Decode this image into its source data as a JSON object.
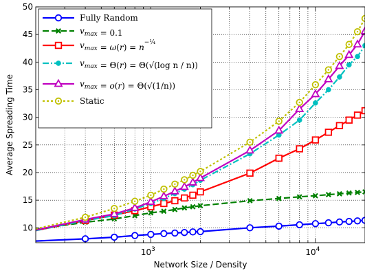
{
  "chart_data": {
    "type": "line",
    "title": "",
    "xlabel": "Network Size / Density",
    "ylabel": "Average Spreading Time",
    "x_scale": "log",
    "xlim": [
      200,
      20000
    ],
    "ylim": [
      7.3,
      50
    ],
    "grid": true,
    "grid_style": "dotted",
    "legend_placement": "top-left",
    "x_major_ticks": [
      1000,
      10000
    ],
    "x_tick_labels": [
      {
        "base": "10",
        "exp": "3"
      },
      {
        "base": "10",
        "exp": "4"
      }
    ],
    "y_ticks": [
      10,
      15,
      20,
      25,
      30,
      35,
      40,
      45,
      50
    ],
    "y_tick_labels": [
      "10",
      "15",
      "20",
      "25",
      "30",
      "35",
      "40",
      "45",
      "50"
    ],
    "series": [
      {
        "name": "Fully Random",
        "color": "#0000ff",
        "line_style": "solid",
        "marker": "circle",
        "x": [
          200,
          400,
          600,
          800,
          1000,
          1200,
          1400,
          1600,
          1800,
          2000,
          4000,
          6000,
          8000,
          10000,
          12000,
          14000,
          16000,
          18000,
          20000
        ],
        "y": [
          7.6,
          8.0,
          8.3,
          8.6,
          8.8,
          8.95,
          9.05,
          9.15,
          9.25,
          9.3,
          10.0,
          10.3,
          10.55,
          10.75,
          10.9,
          11.05,
          11.15,
          11.25,
          11.35
        ]
      },
      {
        "name": "v_max = 0.1",
        "color": "#008000",
        "line_style": "dashed",
        "marker": "x",
        "x": [
          200,
          400,
          600,
          800,
          1000,
          1200,
          1400,
          1600,
          1800,
          2000,
          4000,
          6000,
          8000,
          10000,
          12000,
          14000,
          16000,
          18000,
          20000
        ],
        "y": [
          9.7,
          11.0,
          11.6,
          12.2,
          12.7,
          13.0,
          13.3,
          13.6,
          13.8,
          14.0,
          14.9,
          15.3,
          15.6,
          15.8,
          16.0,
          16.15,
          16.3,
          16.4,
          16.5
        ]
      },
      {
        "name": "v_max = ω(r) = n^(-1/4)",
        "color": "#ff0000",
        "line_style": "solid",
        "marker": "square",
        "x": [
          200,
          400,
          600,
          800,
          1000,
          1200,
          1400,
          1600,
          1800,
          2000,
          4000,
          6000,
          8000,
          10000,
          12000,
          14000,
          16000,
          18000,
          20000
        ],
        "y": [
          9.5,
          11.3,
          12.3,
          13.1,
          13.8,
          14.4,
          14.9,
          15.4,
          15.9,
          16.5,
          19.9,
          22.6,
          24.3,
          25.9,
          27.3,
          28.5,
          29.5,
          30.4,
          31.2
        ]
      },
      {
        "name": "v_max = Θ(r) = Θ(√(log n / n))",
        "color": "#00c0c0",
        "line_style": "dashdot",
        "marker": "dot",
        "x": [
          200,
          400,
          600,
          800,
          1000,
          1200,
          1400,
          1600,
          1800,
          2000,
          4000,
          6000,
          8000,
          10000,
          12000,
          14000,
          16000,
          18000,
          20000
        ],
        "y": [
          9.5,
          11.3,
          12.2,
          13.4,
          14.4,
          15.3,
          16.2,
          17.0,
          17.8,
          18.6,
          23.4,
          26.8,
          29.5,
          32.6,
          35.0,
          37.3,
          39.5,
          41.0,
          43.0
        ]
      },
      {
        "name": "v_max = o(r) = Θ(√(1/n))",
        "color": "#c000c0",
        "line_style": "solid",
        "marker": "triangle",
        "x": [
          200,
          400,
          600,
          800,
          1000,
          1200,
          1400,
          1600,
          1800,
          2000,
          4000,
          6000,
          8000,
          10000,
          12000,
          14000,
          16000,
          18000,
          20000
        ],
        "y": [
          9.6,
          11.5,
          12.5,
          13.6,
          14.7,
          15.7,
          16.6,
          17.4,
          18.2,
          19.0,
          24.0,
          27.6,
          31.5,
          34.2,
          36.9,
          39.3,
          41.3,
          43.2,
          45.6
        ]
      },
      {
        "name": "Static",
        "color": "#c0c000",
        "line_style": "dotted",
        "marker": "circle-dot",
        "x": [
          200,
          400,
          600,
          800,
          1000,
          1200,
          1400,
          1600,
          1800,
          2000,
          4000,
          6000,
          8000,
          10000,
          12000,
          14000,
          16000,
          18000,
          20000
        ],
        "y": [
          9.8,
          11.9,
          13.5,
          14.8,
          15.9,
          17.0,
          17.9,
          18.7,
          19.5,
          20.2,
          25.5,
          29.3,
          32.7,
          35.9,
          38.6,
          41.0,
          43.2,
          45.5,
          47.9
        ]
      }
    ]
  },
  "legend": {
    "entries": [
      {
        "key": "fully_random",
        "parts": [
          {
            "t": "Fully Random",
            "style": "roman"
          }
        ]
      },
      {
        "key": "vmax_01",
        "parts": [
          {
            "t": "v",
            "style": "italic"
          },
          {
            "t": "max",
            "style": "sub-italic"
          },
          {
            "t": " = 0.1",
            "style": "roman"
          }
        ]
      },
      {
        "key": "vmax_omega",
        "parts": [
          {
            "t": "v",
            "style": "italic"
          },
          {
            "t": "max",
            "style": "sub-italic"
          },
          {
            "t": " = ",
            "style": "roman"
          },
          {
            "t": "ω",
            "style": "italic"
          },
          {
            "t": "(",
            "style": "roman"
          },
          {
            "t": "r",
            "style": "italic"
          },
          {
            "t": ") = ",
            "style": "roman"
          },
          {
            "t": "n",
            "style": "italic"
          },
          {
            "t": "−¼",
            "style": "sup"
          }
        ]
      },
      {
        "key": "vmax_theta",
        "parts": [
          {
            "t": "v",
            "style": "italic"
          },
          {
            "t": "max",
            "style": "sub-italic"
          },
          {
            "t": " = Θ(",
            "style": "roman"
          },
          {
            "t": "r",
            "style": "italic"
          },
          {
            "t": ") = Θ",
            "style": "roman"
          },
          {
            "t": "(√(log n / n))",
            "style": "roman"
          }
        ]
      },
      {
        "key": "vmax_o",
        "parts": [
          {
            "t": "v",
            "style": "italic"
          },
          {
            "t": "max",
            "style": "sub-italic"
          },
          {
            "t": " = ",
            "style": "roman"
          },
          {
            "t": "o",
            "style": "italic"
          },
          {
            "t": "(",
            "style": "roman"
          },
          {
            "t": "r",
            "style": "italic"
          },
          {
            "t": ") = Θ",
            "style": "roman"
          },
          {
            "t": "(√(1/n))",
            "style": "roman"
          }
        ]
      },
      {
        "key": "static",
        "parts": [
          {
            "t": "Static",
            "style": "roman"
          }
        ]
      }
    ]
  }
}
